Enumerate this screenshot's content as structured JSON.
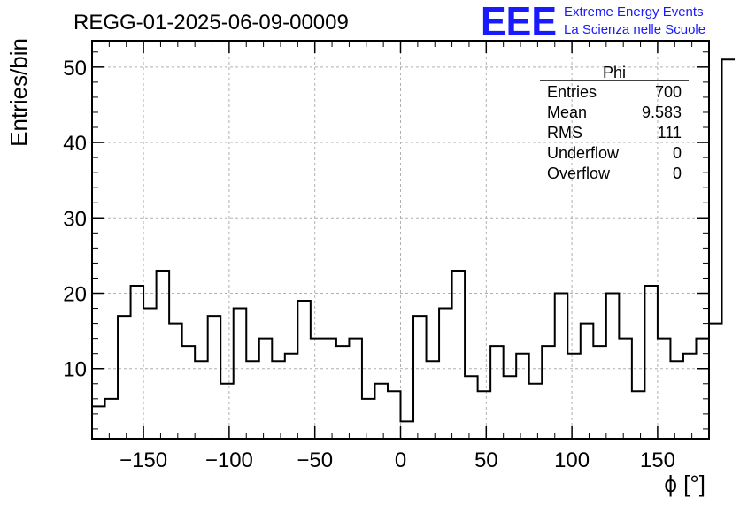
{
  "chart_data": {
    "type": "histogram",
    "title": "REGG-01-2025-06-09-00009",
    "xlabel": "ϕ [°]",
    "ylabel": "Entries/bin",
    "xlim": [
      -180,
      180
    ],
    "ylim": [
      0.7,
      53.5
    ],
    "bin_width": 7.5,
    "bin_start": -180,
    "grid": true,
    "x_ticks": [
      -150,
      -100,
      -50,
      0,
      50,
      100,
      150
    ],
    "x_tick_labels": [
      "−150",
      "−100",
      "−50",
      "0",
      "50",
      "100",
      "150"
    ],
    "y_ticks": [
      10,
      20,
      30,
      40,
      50
    ],
    "y_tick_labels": [
      "10",
      "20",
      "30",
      "40",
      "50"
    ],
    "values": [
      5,
      6,
      17,
      21,
      18,
      23,
      16,
      13,
      11,
      17,
      8,
      18,
      11,
      14,
      11,
      12,
      19,
      14,
      14,
      13,
      14,
      6,
      8,
      7,
      3,
      17,
      11,
      18,
      23,
      9,
      7,
      13,
      9,
      12,
      8,
      13,
      20,
      12,
      16,
      13,
      20,
      14,
      7,
      21,
      14,
      11,
      12,
      14,
      16,
      51
    ],
    "stats": {
      "name": "Phi",
      "rows": [
        {
          "label": "Entries",
          "value": "700"
        },
        {
          "label": "Mean",
          "value": "9.583"
        },
        {
          "label": "RMS",
          "value": "111"
        },
        {
          "label": "Underflow",
          "value": "0"
        },
        {
          "label": "Overflow",
          "value": "0"
        }
      ]
    }
  },
  "branding": {
    "logo": "EEE",
    "line1": "Extreme Energy Events",
    "line2": "La Scienza nelle Scuole",
    "color": "#1a1aff"
  }
}
